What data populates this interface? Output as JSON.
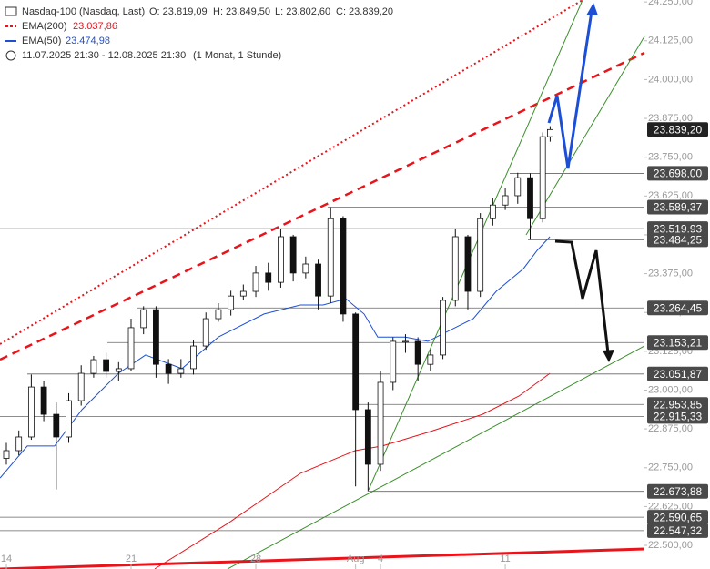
{
  "chart_data": {
    "type": "candlestick",
    "title": "Nasdaq-100 (Nasdaq, Last)",
    "ohlc_labels": [
      "O: 23.819,09",
      "H: 23.849,50",
      "L: 23.802,60",
      "C: 23.839,20"
    ],
    "period": "11.07.2025 21:30 - 12.08.2025 21:30",
    "interval": "(1 Monat, 1 Stunde)",
    "x": [
      0,
      0.5,
      1,
      1.5,
      2,
      2.5,
      3,
      3.5,
      4,
      4.5,
      5,
      5.5,
      6,
      6.5,
      7,
      7.5,
      8,
      8.5,
      9,
      9.5,
      10,
      10.5,
      11,
      11.5,
      12,
      12.5,
      13,
      13.5,
      14,
      14.5,
      15,
      15.5,
      16,
      16.5,
      17,
      17.5,
      18,
      18.5,
      19,
      19.5,
      20,
      20.5,
      21,
      21.5,
      21.8
    ],
    "open": [
      22780,
      22805,
      22849,
      23010,
      22922,
      22849,
      22966,
      23054,
      23098,
      23060,
      23069,
      23201,
      23259,
      23083,
      23054,
      23069,
      23142,
      23230,
      23259,
      23303,
      23318,
      23377,
      23347,
      23494,
      23377,
      23406,
      23303,
      23552,
      23245,
      22937,
      22761,
      23025,
      23157,
      23157,
      23083,
      23113,
      23289,
      23494,
      23318,
      23552,
      23596,
      23626,
      23684,
      23552,
      23816
    ],
    "high": [
      22830,
      22870,
      23050,
      23030,
      22960,
      22990,
      23080,
      23110,
      23120,
      23090,
      23230,
      23270,
      23270,
      23100,
      23100,
      23160,
      23250,
      23280,
      23320,
      23340,
      23400,
      23410,
      23520,
      23500,
      23430,
      23420,
      23589,
      23560,
      23250,
      22960,
      23060,
      23170,
      23180,
      23170,
      23130,
      23300,
      23520,
      23500,
      23570,
      23620,
      23650,
      23700,
      23698,
      23830,
      23850
    ],
    "low": [
      22760,
      22790,
      22840,
      22900,
      22680,
      22830,
      22950,
      23040,
      23040,
      23030,
      23060,
      23180,
      23040,
      23020,
      23040,
      23050,
      23130,
      23220,
      23240,
      23290,
      23300,
      23320,
      23330,
      23350,
      23360,
      23260,
      23280,
      23220,
      22690,
      22674,
      22740,
      23000,
      23120,
      23030,
      23060,
      23100,
      23270,
      23260,
      23300,
      23530,
      23580,
      23600,
      23484,
      23540,
      23800
    ],
    "close": [
      22805,
      22849,
      23010,
      22922,
      22849,
      22966,
      23054,
      23098,
      23060,
      23069,
      23201,
      23259,
      23083,
      23054,
      23069,
      23142,
      23230,
      23259,
      23303,
      23318,
      23377,
      23347,
      23494,
      23377,
      23406,
      23303,
      23552,
      23245,
      22937,
      22761,
      23025,
      23157,
      23157,
      23083,
      23113,
      23289,
      23494,
      23318,
      23552,
      23596,
      23626,
      23684,
      23552,
      23816,
      23839
    ],
    "series": [
      {
        "name": "EMA(200)",
        "value_label": "23.037,86",
        "color": "#e8141b",
        "x": [
          5.95,
          8.87,
          11.79,
          13.98,
          15.07,
          16.9,
          19.09,
          20.55,
          21.79
        ],
        "values": [
          22424,
          22570,
          22732,
          22805,
          22820,
          22864,
          22922,
          22981,
          23054
        ]
      },
      {
        "name": "EMA(50)",
        "value_label": "23.474,98",
        "color": "#1d4fd6",
        "x": [
          -0.25,
          0.84,
          1.93,
          3.03,
          4.49,
          5.58,
          7.04,
          8.5,
          10.33,
          11.79,
          12.7,
          13.61,
          14.34,
          14.89,
          15.99,
          16.9,
          17.99,
          18.72,
          19.64,
          20.73,
          21.28,
          21.79
        ],
        "values": [
          22717,
          22820,
          22820,
          22937,
          23054,
          23113,
          23069,
          23171,
          23245,
          23274,
          23274,
          23294,
          23245,
          23171,
          23171,
          23157,
          23201,
          23230,
          23318,
          23391,
          23450,
          23494
        ]
      }
    ],
    "levels": [
      {
        "value": 23698.0,
        "label": "23.698,00"
      },
      {
        "value": 23589.37,
        "label": "23.589,37"
      },
      {
        "value": 23519.93,
        "label": "23.519,93"
      },
      {
        "value": 23484.25,
        "label": "23.484,25"
      },
      {
        "value": 23264.45,
        "label": "23.264,45"
      },
      {
        "value": 23153.21,
        "label": "23.153,21"
      },
      {
        "value": 23051.87,
        "label": "23.051,87"
      },
      {
        "value": 22953.85,
        "label": "22.953,85"
      },
      {
        "value": 22915.33,
        "label": "22.915,33"
      },
      {
        "value": 22673.88,
        "label": "22.673,88"
      },
      {
        "value": 22590.65,
        "label": "22.590,65"
      },
      {
        "value": 22547.32,
        "label": "22.547,32"
      },
      {
        "value": 23839.2,
        "label": "23.839,20"
      }
    ],
    "xlim": [
      -0.255,
      25.58
    ],
    "xticks": [
      {
        "value": 0,
        "label": "14"
      },
      {
        "value": 5,
        "label": "21"
      },
      {
        "value": 10,
        "label": "28"
      },
      {
        "value": 14,
        "label": "Aug"
      },
      {
        "value": 15,
        "label": "4"
      },
      {
        "value": 20,
        "label": "11"
      }
    ],
    "ylim": [
      22423.8,
      24256.3
    ],
    "yticks": [
      {
        "value": 22500,
        "label": "22.500,00"
      },
      {
        "value": 22625,
        "label": "22.625,00"
      },
      {
        "value": 22750,
        "label": "22.750,00"
      },
      {
        "value": 22875,
        "label": "22.875,00"
      },
      {
        "value": 23000,
        "label": "23.000,00"
      },
      {
        "value": 23125,
        "label": "23.125,00"
      },
      {
        "value": 23250,
        "label": "23.250,00"
      },
      {
        "value": 23375,
        "label": "23.375,00"
      },
      {
        "value": 23500,
        "label": "23.500,00"
      },
      {
        "value": 23625,
        "label": "23.625,00"
      },
      {
        "value": 23750,
        "label": "23.750,00"
      },
      {
        "value": 23875,
        "label": "23.875,00"
      },
      {
        "value": 24000,
        "label": "24.000,00"
      },
      {
        "value": 24125,
        "label": "24.125,00"
      },
      {
        "value": 24250,
        "label": "24.250,00"
      }
    ]
  }
}
